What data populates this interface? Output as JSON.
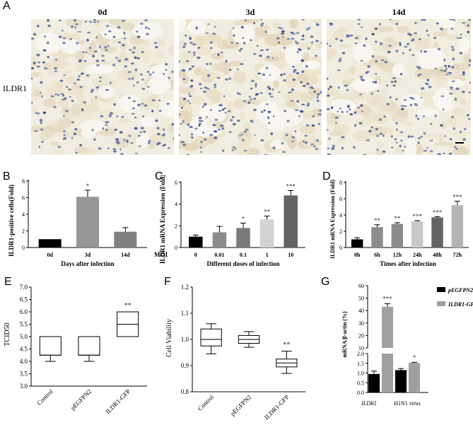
{
  "panelA": {
    "label": "A",
    "side_label": "ILDR1",
    "images": [
      {
        "title": "0d"
      },
      {
        "title": "3d"
      },
      {
        "title": "14d"
      }
    ]
  },
  "panelB": {
    "label": "B",
    "chart_data": {
      "type": "bar",
      "ylabel": "ILDR1-positive cells(Fold)",
      "xlabel": "Days after infection",
      "ylim": [
        0,
        8
      ],
      "yticks": [
        0,
        2,
        4,
        6,
        8
      ],
      "categories": [
        "0d",
        "3d",
        "14d"
      ],
      "values": [
        1.0,
        6.1,
        1.9
      ],
      "errors": [
        0.0,
        0.8,
        0.5
      ],
      "significance": [
        "",
        "*",
        ""
      ],
      "colors": [
        "#000000",
        "#969696",
        "#808080"
      ]
    }
  },
  "panelC": {
    "label": "C",
    "chart_data": {
      "type": "bar",
      "ylabel": "ILDR1 mRNA Expression (Fold)",
      "xlabel": "Different doses of infection",
      "x_prefix": "MOI",
      "ylim": [
        0,
        6
      ],
      "yticks": [
        0,
        2,
        4,
        6
      ],
      "categories": [
        "0",
        "0.01",
        "0.1",
        "1",
        "10"
      ],
      "values": [
        1.0,
        1.4,
        1.8,
        2.6,
        4.8
      ],
      "errors": [
        0.15,
        0.55,
        0.45,
        0.3,
        0.45
      ],
      "significance": [
        "",
        "",
        "*",
        "**",
        "***"
      ],
      "colors": [
        "#000000",
        "#8c8c8c",
        "#7a7a7a",
        "#d2d2d2",
        "#646464"
      ]
    }
  },
  "panelD": {
    "label": "D",
    "chart_data": {
      "type": "bar",
      "ylabel": "ILDR1 mRNA Expression (Fold)",
      "xlabel": "Times after infection",
      "ylim": [
        0,
        8
      ],
      "yticks": [
        0,
        2,
        4,
        6,
        8
      ],
      "categories": [
        "0h",
        "6h",
        "12h",
        "24h",
        "48h",
        "72h"
      ],
      "values": [
        1.0,
        2.5,
        2.9,
        3.2,
        3.7,
        5.2
      ],
      "errors": [
        0.2,
        0.3,
        0.15,
        0.1,
        0.1,
        0.5
      ],
      "significance": [
        "",
        "**",
        "**",
        "***",
        "***",
        "***"
      ],
      "colors": [
        "#000000",
        "#8c8c8c",
        "#8c8c8c",
        "#c8c8c8",
        "#646464",
        "#b4b4b4"
      ]
    }
  },
  "panelE": {
    "label": "E",
    "chart_data": {
      "type": "box",
      "ylabel": "TCID50",
      "ylim": [
        3.0,
        7.0
      ],
      "yticks": [
        "3.0",
        "3.5",
        "4.0",
        "4.5",
        "5.0",
        "5.5",
        "6.0",
        "6.5",
        "7.0"
      ],
      "categories": [
        "Control",
        "pEGFPN2",
        "ILDR1-GFP"
      ],
      "boxes": [
        {
          "min": 4.0,
          "q1": 4.25,
          "median": 4.25,
          "q3": 5.0,
          "max": 5.0
        },
        {
          "min": 4.0,
          "q1": 4.25,
          "median": 4.25,
          "q3": 5.0,
          "max": 5.0
        },
        {
          "min": 5.0,
          "q1": 5.0,
          "median": 5.5,
          "q3": 6.0,
          "max": 6.0
        }
      ],
      "significance": [
        "",
        "",
        "**"
      ]
    }
  },
  "panelF": {
    "label": "F",
    "chart_data": {
      "type": "box",
      "ylabel": "Cell Viability",
      "ylim": [
        0.8,
        1.2
      ],
      "yticks": [
        "0.8",
        "0.9",
        "1.0",
        "1.1",
        "1.2"
      ],
      "categories": [
        "Control",
        "pEGFPN2",
        "ILDR1-GFP"
      ],
      "boxes": [
        {
          "min": 0.945,
          "q1": 0.975,
          "median": 1.0,
          "q3": 1.04,
          "max": 1.06
        },
        {
          "min": 0.97,
          "q1": 0.985,
          "median": 1.0,
          "q3": 1.015,
          "max": 1.03
        },
        {
          "min": 0.87,
          "q1": 0.895,
          "median": 0.91,
          "q3": 0.925,
          "max": 0.955
        }
      ],
      "significance": [
        "",
        "",
        "**"
      ]
    }
  },
  "panelG": {
    "label": "G",
    "chart_data": {
      "type": "bar",
      "ylabel": "mRNA/β-actin (%)",
      "broken_axis": true,
      "upper_ticks": [
        "10",
        "20",
        "30",
        "40",
        "50",
        "60"
      ],
      "lower_ticks": [
        "0.0",
        "0.5",
        "1.0",
        "1.5",
        "2.0"
      ],
      "categories": [
        "ILDR1",
        "H1N1 virus"
      ],
      "series": [
        {
          "name": "pEGFPN2",
          "color": "#000000",
          "values": [
            0.95,
            1.15
          ],
          "errors": [
            0.15,
            0.08
          ]
        },
        {
          "name": "ILDR1-GFP",
          "color": "#a0a0a0",
          "values": [
            43.0,
            1.52
          ],
          "errors": [
            2.5,
            0.03
          ]
        }
      ],
      "significance": [
        {
          "category": "ILDR1",
          "label": "***"
        },
        {
          "category": "H1N1 virus",
          "label": "*"
        }
      ]
    }
  }
}
